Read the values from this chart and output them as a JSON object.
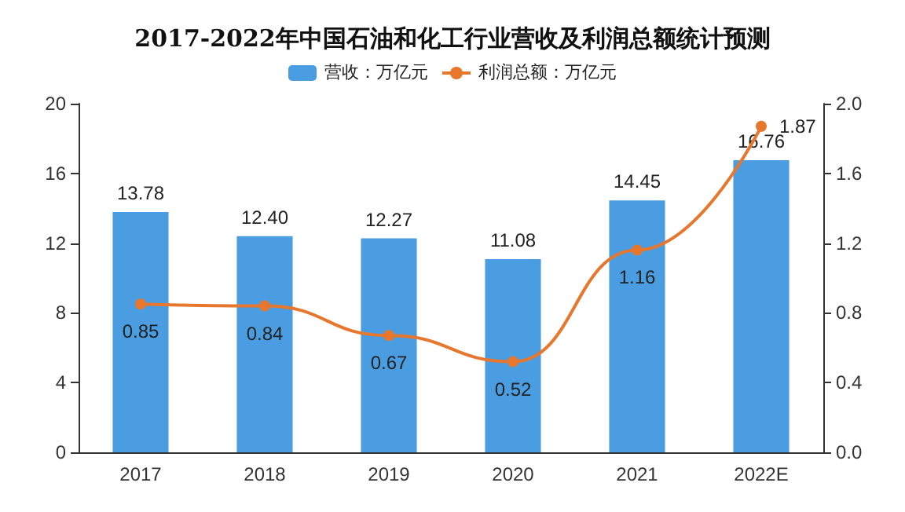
{
  "chart_data": {
    "type": "bar",
    "title": "2017-2022年中国石油和化工行业营收及利润总额统计预测",
    "categories": [
      "2017",
      "2018",
      "2019",
      "2020",
      "2021",
      "2022E"
    ],
    "series": [
      {
        "name": "营收：万亿元",
        "color": "#4a9de0",
        "values": [
          13.78,
          12.4,
          12.27,
          11.08,
          14.45,
          16.76
        ],
        "value_labels": [
          "13.78",
          "12.40",
          "12.27",
          "11.08",
          "14.45",
          "16.76"
        ]
      },
      {
        "name": "利润总额：万亿元",
        "type": "line",
        "axis": "y2",
        "color": "#e8772e",
        "values": [
          0.85,
          0.84,
          0.67,
          0.52,
          1.16,
          1.87
        ],
        "value_labels": [
          "0.85",
          "0.84",
          "0.67",
          "0.52",
          "1.16",
          "1.87"
        ]
      }
    ],
    "ylim": [
      0,
      20
    ],
    "yticks": [
      0,
      4,
      8,
      12,
      16,
      20
    ],
    "y2lim": [
      0,
      2.0
    ],
    "y2ticks": [
      {
        "value": 0,
        "label": "0.0"
      },
      {
        "value": 0.4,
        "label": "0.4"
      },
      {
        "value": 0.8,
        "label": "0.8"
      },
      {
        "value": 1.2,
        "label": "1.2"
      },
      {
        "value": 1.6,
        "label": "1.6"
      },
      {
        "value": 2.0,
        "label": "2.0"
      }
    ],
    "legend": "top",
    "grid": false,
    "marker": "circle"
  }
}
